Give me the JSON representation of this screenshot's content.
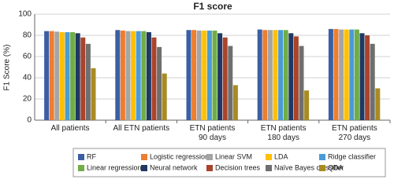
{
  "chart_data": {
    "type": "bar",
    "title": "F1 score",
    "y_label": "F1 Score (%)",
    "categories": [
      "All patients",
      "All ETN patients",
      "ETN patients\n90 days",
      "ETN patients\n180 days",
      "ETN patients\n270 days"
    ],
    "series": [
      {
        "name": "RF",
        "color": "#3c5fa3",
        "values": [
          84,
          85,
          85,
          85.5,
          86
        ]
      },
      {
        "name": "Logistic regression",
        "color": "#ed7d31",
        "values": [
          84,
          84.5,
          85,
          85,
          86
        ]
      },
      {
        "name": "Linear SVM",
        "color": "#a5a5a5",
        "values": [
          83.5,
          84,
          84.5,
          85,
          85.5
        ]
      },
      {
        "name": "LDA",
        "color": "#ffc000",
        "values": [
          83,
          84,
          84.5,
          85,
          85.5
        ]
      },
      {
        "name": "Ridge classifier",
        "color": "#4a9bd6",
        "values": [
          83,
          84,
          84.5,
          85,
          85.5
        ]
      },
      {
        "name": "Linear regression",
        "color": "#70ad47",
        "values": [
          83,
          84,
          84.5,
          85,
          85.5
        ]
      },
      {
        "name": "Neural network",
        "color": "#1f3864",
        "values": [
          82,
          83,
          82,
          82,
          82
        ]
      },
      {
        "name": "Decision trees",
        "color": "#a9442a",
        "values": [
          78,
          78,
          78,
          79,
          80
        ]
      },
      {
        "name": "Naïve Bayes classifier",
        "color": "#6f6f6f",
        "values": [
          72,
          69,
          70,
          70,
          72
        ]
      },
      {
        "name": "QDA",
        "color": "#a88b22",
        "values": [
          49,
          44,
          33,
          28,
          30
        ]
      }
    ],
    "ylim": [
      0,
      100
    ],
    "yticks": [
      0,
      20,
      40,
      60,
      80,
      100
    ],
    "grid": true
  }
}
